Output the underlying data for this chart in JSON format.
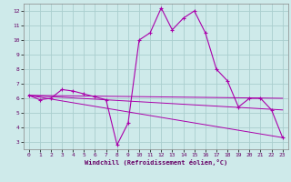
{
  "xlabel": "Windchill (Refroidissement éolien,°C)",
  "background_color": "#ceeaea",
  "grid_color": "#aacece",
  "line_color": "#aa00aa",
  "xlim": [
    -0.5,
    23.5
  ],
  "ylim": [
    2.5,
    12.5
  ],
  "xticks": [
    0,
    1,
    2,
    3,
    4,
    5,
    6,
    7,
    8,
    9,
    10,
    11,
    12,
    13,
    14,
    15,
    16,
    17,
    18,
    19,
    20,
    21,
    22,
    23
  ],
  "yticks": [
    3,
    4,
    5,
    6,
    7,
    8,
    9,
    10,
    11,
    12
  ],
  "curve_x": [
    0,
    1,
    2,
    3,
    4,
    5,
    6,
    7,
    8,
    9,
    10,
    11,
    12,
    13,
    14,
    15,
    16,
    17,
    18,
    19,
    20,
    21,
    22,
    23
  ],
  "curve_y": [
    6.2,
    5.9,
    6.0,
    6.6,
    6.5,
    6.3,
    6.1,
    5.9,
    2.8,
    4.3,
    10.0,
    10.5,
    12.2,
    10.7,
    11.5,
    12.0,
    10.5,
    8.0,
    7.2,
    5.4,
    6.0,
    6.0,
    5.2,
    3.3
  ],
  "line1_x": [
    0,
    23
  ],
  "line1_y": [
    6.2,
    6.0
  ],
  "line2_x": [
    0,
    23
  ],
  "line2_y": [
    6.2,
    5.2
  ],
  "line3_x": [
    0,
    23
  ],
  "line3_y": [
    6.2,
    3.3
  ]
}
